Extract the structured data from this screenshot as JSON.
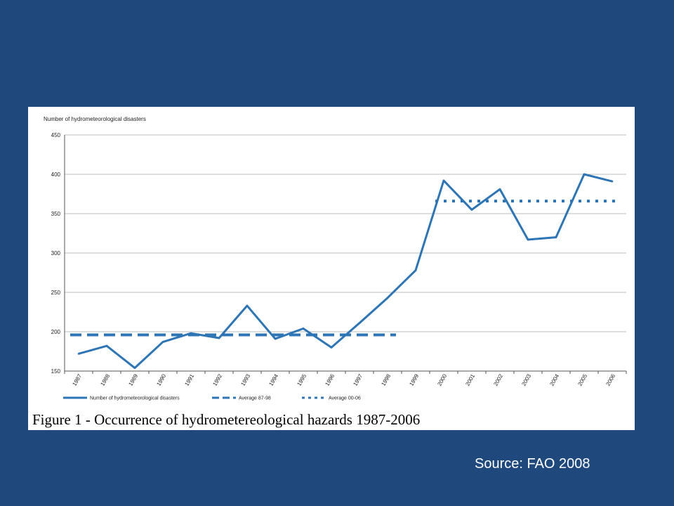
{
  "chart_data": {
    "type": "line",
    "ylabel": "Number of hydrometeorological disasters",
    "ylim": [
      150,
      450
    ],
    "yticks": [
      150,
      200,
      250,
      300,
      350,
      400,
      450
    ],
    "grid": true,
    "x": [
      "1987",
      "1988",
      "1989",
      "1990",
      "1991",
      "1992",
      "1993",
      "1994",
      "1995",
      "1996",
      "1997",
      "1998",
      "1999",
      "2000",
      "2001",
      "2002",
      "2003",
      "2004",
      "2005",
      "2006"
    ],
    "series": [
      {
        "name": "Number of hydrometeorological disasters",
        "style": "solid",
        "color": "#2e75b6",
        "values": [
          172,
          182,
          154,
          187,
          198,
          192,
          233,
          191,
          204,
          180,
          211,
          243,
          278,
          392,
          355,
          381,
          317,
          320,
          400,
          391
        ]
      },
      {
        "name": "Average 87-98",
        "style": "dashed",
        "color": "#2e75b6",
        "x_from": "1987",
        "x_to": "1998",
        "value": 196
      },
      {
        "name": "Average 00-06",
        "style": "dotted",
        "color": "#2e75b6",
        "x_from": "2000",
        "x_to": "2006",
        "value": 366
      }
    ],
    "legend_position": "bottom"
  },
  "caption": "Figure 1 - Occurrence of hydrometereological hazards 1987-2006",
  "source": "Source: FAO 2008"
}
